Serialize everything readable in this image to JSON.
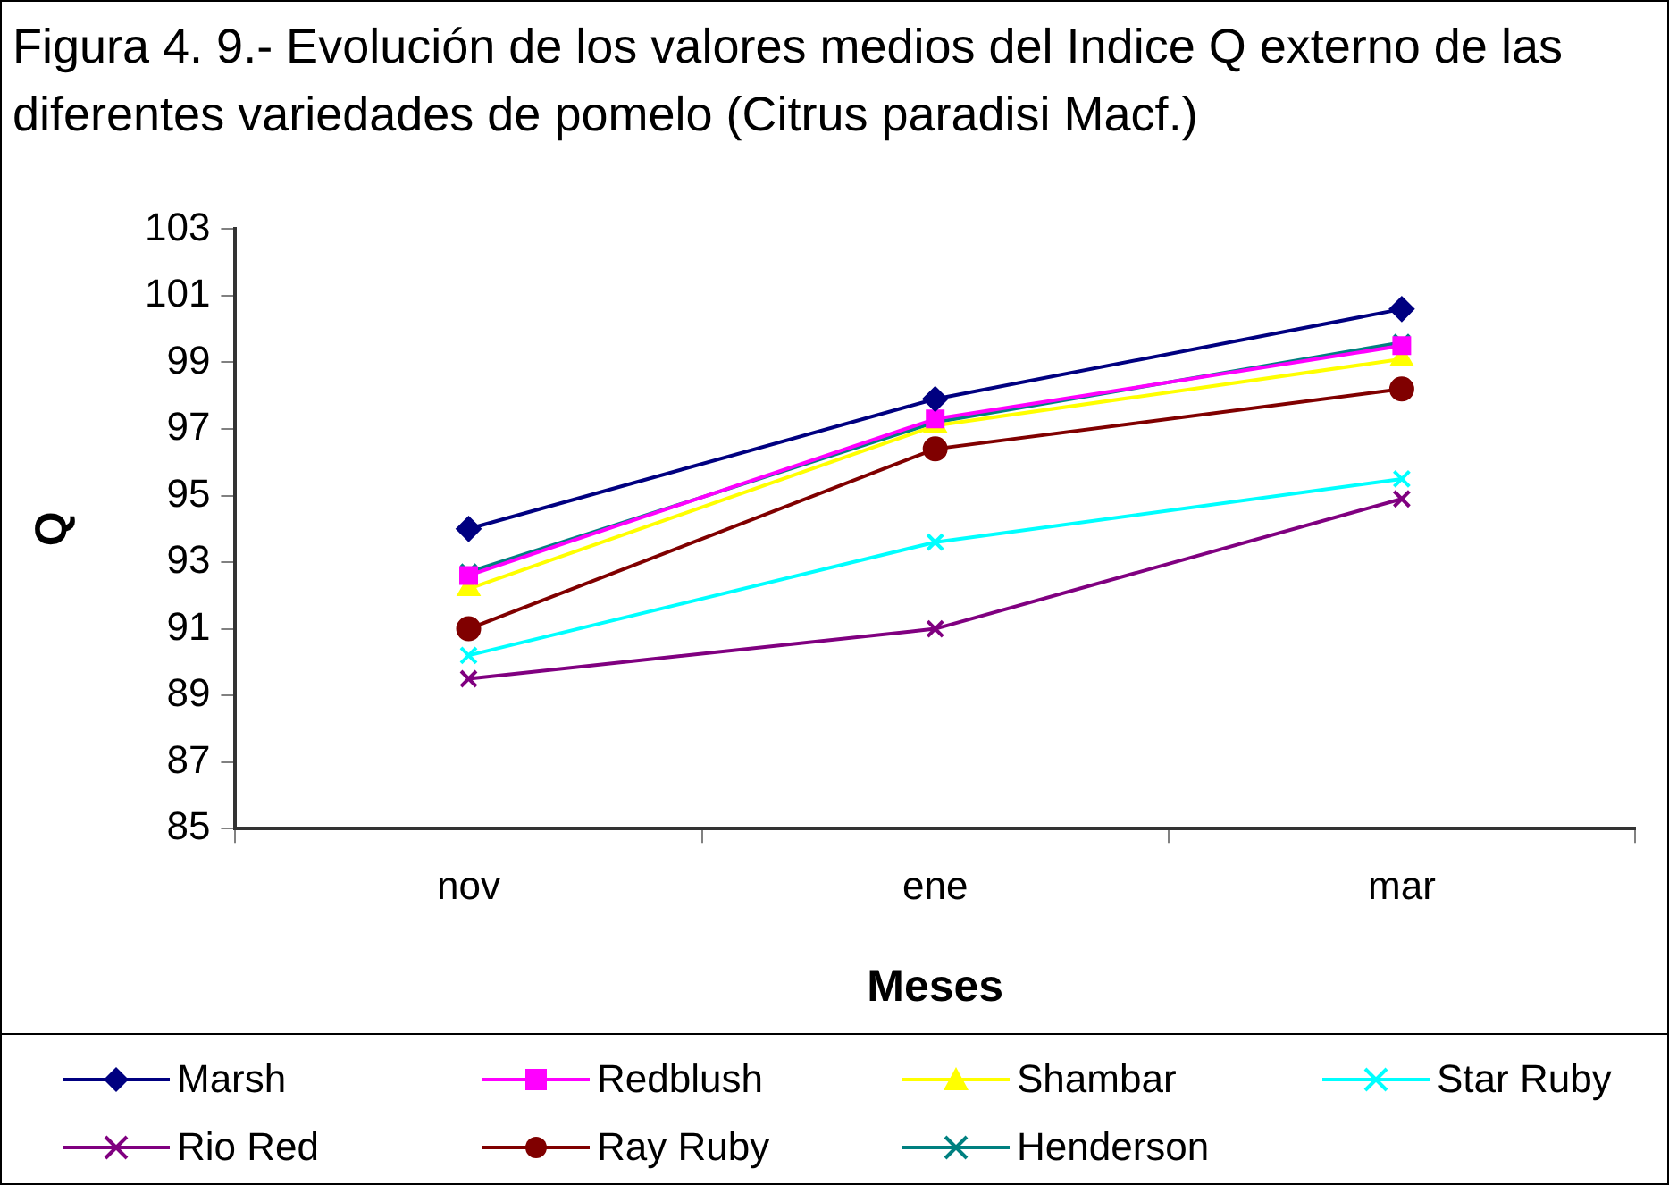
{
  "chart_data": {
    "type": "line",
    "title": "Figura  4. 9.- Evolución de los valores medios del Indice  Q externo de las diferentes variedades de pomelo (Citrus paradisi Macf.)",
    "xlabel": "Meses",
    "ylabel": "Q",
    "categories": [
      "nov",
      "ene",
      "mar"
    ],
    "ylim": [
      85,
      103
    ],
    "yticks": [
      85,
      87,
      89,
      91,
      93,
      95,
      97,
      99,
      101,
      103
    ],
    "grid": false,
    "legend": "bottom",
    "line_style": "solid",
    "series": [
      {
        "name": "Marsh",
        "color": "#000080",
        "marker": "diamond",
        "values": [
          94.0,
          97.9,
          100.6
        ]
      },
      {
        "name": "Redblush",
        "color": "#ff00ff",
        "marker": "square",
        "values": [
          92.6,
          97.3,
          99.5
        ]
      },
      {
        "name": "Shambar",
        "color": "#ffff00",
        "marker": "triangle",
        "values": [
          92.2,
          97.1,
          99.1
        ]
      },
      {
        "name": "Star Ruby",
        "color": "#00ffff",
        "marker": "cross",
        "values": [
          90.2,
          93.6,
          95.5
        ]
      },
      {
        "name": "Rio Red",
        "color": "#800080",
        "marker": "cross",
        "values": [
          89.5,
          91.0,
          94.9
        ]
      },
      {
        "name": "Ray Ruby",
        "color": "#800000",
        "marker": "circle",
        "values": [
          91.0,
          96.4,
          98.2
        ]
      },
      {
        "name": "Henderson",
        "color": "#008080",
        "marker": "cross",
        "values": [
          92.7,
          97.2,
          99.6
        ]
      }
    ]
  }
}
